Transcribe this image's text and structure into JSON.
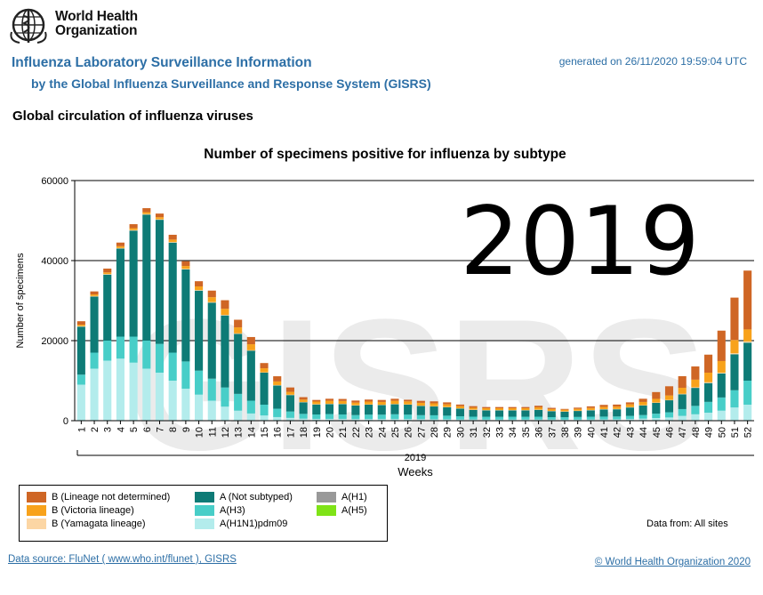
{
  "header": {
    "org_name_line1": "World Health",
    "org_name_line2": "Organization",
    "title": "Influenza Laboratory Surveillance Information",
    "subtitle": "by the Global Influenza Surveillance and Response System (GISRS)",
    "generated": "generated on 26/11/2020 19:59:04 UTC"
  },
  "section_title": "Global circulation of influenza viruses",
  "chart_data": {
    "type": "bar",
    "stacked": true,
    "title": "Number of specimens positive for influenza by subtype",
    "ylabel": "Number of specimens",
    "xlabel": "Weeks",
    "year_label": "2019",
    "big_year_overlay": "2019",
    "watermark": "GISRS",
    "ylim": [
      0,
      60000
    ],
    "yticks": [
      0,
      20000,
      40000,
      60000
    ],
    "grid": true,
    "categories": [
      "1",
      "2",
      "3",
      "4",
      "5",
      "6",
      "7",
      "8",
      "9",
      "10",
      "11",
      "12",
      "13",
      "14",
      "15",
      "16",
      "17",
      "18",
      "19",
      "20",
      "21",
      "22",
      "23",
      "24",
      "25",
      "26",
      "27",
      "28",
      "29",
      "30",
      "31",
      "32",
      "33",
      "34",
      "35",
      "36",
      "37",
      "38",
      "39",
      "40",
      "41",
      "42",
      "43",
      "44",
      "45",
      "46",
      "47",
      "48",
      "49",
      "50",
      "51",
      "52"
    ],
    "series": [
      {
        "name": "A(H1N1)pdm09",
        "color": "#b3ecec",
        "values": [
          9000,
          13000,
          15000,
          15500,
          14500,
          13000,
          12000,
          10000,
          8000,
          6500,
          5000,
          3500,
          2500,
          1800,
          1300,
          900,
          700,
          500,
          450,
          450,
          450,
          400,
          400,
          400,
          400,
          400,
          380,
          350,
          350,
          300,
          300,
          280,
          280,
          280,
          280,
          300,
          280,
          260,
          280,
          300,
          320,
          350,
          400,
          500,
          650,
          800,
          1200,
          1600,
          2000,
          2500,
          3300,
          4000
        ]
      },
      {
        "name": "A(H3)",
        "color": "#48cec8",
        "values": [
          2500,
          4000,
          5000,
          5500,
          6500,
          7000,
          7200,
          7000,
          6800,
          6000,
          5500,
          4800,
          4200,
          3200,
          2700,
          2100,
          1600,
          1200,
          1100,
          1200,
          1100,
          1000,
          1100,
          1100,
          1200,
          1100,
          1000,
          1000,
          900,
          800,
          700,
          700,
          700,
          700,
          700,
          700,
          600,
          600,
          650,
          700,
          700,
          700,
          800,
          900,
          1100,
          1300,
          1700,
          2100,
          2700,
          3300,
          4300,
          6000
        ]
      },
      {
        "name": "A(Not subtyped)",
        "color": "#0e7b76",
        "values": [
          12000,
          14000,
          16500,
          22000,
          26500,
          31500,
          31000,
          27500,
          23000,
          20000,
          19000,
          18000,
          15000,
          12500,
          8000,
          5800,
          4100,
          2900,
          2500,
          2500,
          2600,
          2400,
          2500,
          2400,
          2500,
          2500,
          2300,
          2200,
          2100,
          1900,
          1700,
          1600,
          1600,
          1600,
          1600,
          1700,
          1500,
          1400,
          1500,
          1600,
          1800,
          1800,
          2100,
          2400,
          2700,
          3000,
          3700,
          4500,
          4700,
          6000,
          9000,
          9500
        ]
      },
      {
        "name": "A(H1)",
        "color": "#999999",
        "values": [
          0,
          0,
          0,
          0,
          0,
          0,
          0,
          0,
          0,
          0,
          0,
          0,
          0,
          0,
          0,
          0,
          0,
          0,
          0,
          0,
          0,
          0,
          0,
          0,
          0,
          0,
          0,
          0,
          0,
          0,
          0,
          0,
          0,
          0,
          0,
          0,
          0,
          0,
          0,
          0,
          0,
          0,
          0,
          0,
          0,
          0,
          0,
          0,
          0,
          0,
          0,
          0
        ]
      },
      {
        "name": "A(H5)",
        "color": "#7fe317",
        "values": [
          0,
          0,
          0,
          0,
          0,
          0,
          0,
          0,
          0,
          0,
          0,
          0,
          0,
          0,
          0,
          0,
          0,
          0,
          0,
          0,
          0,
          0,
          0,
          0,
          0,
          0,
          0,
          0,
          0,
          0,
          0,
          0,
          0,
          0,
          0,
          0,
          0,
          0,
          0,
          0,
          0,
          0,
          0,
          0,
          0,
          0,
          0,
          0,
          0,
          0,
          0,
          0
        ]
      },
      {
        "name": "B (Yamagata lineage)",
        "color": "#fcd6a4",
        "values": [
          150,
          150,
          150,
          150,
          150,
          150,
          150,
          150,
          150,
          150,
          150,
          150,
          120,
          100,
          100,
          100,
          100,
          80,
          80,
          80,
          80,
          80,
          80,
          80,
          80,
          80,
          80,
          80,
          80,
          80,
          80,
          80,
          80,
          80,
          80,
          80,
          80,
          80,
          80,
          80,
          80,
          80,
          80,
          80,
          100,
          100,
          120,
          150,
          200,
          200,
          250,
          300
        ]
      },
      {
        "name": "B (Victoria lineage)",
        "color": "#f8a21b",
        "values": [
          350,
          400,
          400,
          450,
          450,
          450,
          500,
          600,
          700,
          900,
          1200,
          1500,
          1500,
          1500,
          1000,
          900,
          700,
          600,
          650,
          750,
          700,
          650,
          700,
          700,
          800,
          750,
          700,
          700,
          650,
          550,
          450,
          450,
          450,
          450,
          450,
          550,
          450,
          400,
          450,
          500,
          550,
          600,
          700,
          800,
          900,
          1100,
          1500,
          1900,
          2400,
          2900,
          3300,
          3000
        ]
      },
      {
        "name": "B (Lineage not determined)",
        "color": "#cf6625",
        "values": [
          850,
          750,
          950,
          900,
          1000,
          1000,
          900,
          1200,
          1200,
          1300,
          1650,
          2150,
          1900,
          1800,
          1300,
          1300,
          1100,
          600,
          400,
          500,
          500,
          500,
          500,
          500,
          500,
          400,
          500,
          500,
          500,
          400,
          400,
          300,
          300,
          300,
          300,
          400,
          300,
          200,
          300,
          400,
          500,
          500,
          500,
          800,
          1700,
          2300,
          2900,
          3300,
          4500,
          7600,
          10600,
          14700
        ]
      }
    ]
  },
  "legend": {
    "col1": [
      {
        "label": "B (Lineage not determined)",
        "color": "#cf6625"
      },
      {
        "label": "B (Victoria lineage)",
        "color": "#f8a21b"
      },
      {
        "label": "B (Yamagata lineage)",
        "color": "#fcd6a4"
      }
    ],
    "col2": [
      {
        "label": "A (Not subtyped)",
        "color": "#0e7b76"
      },
      {
        "label": "A(H3)",
        "color": "#48cec8"
      },
      {
        "label": "A(H1N1)pdm09",
        "color": "#b3ecec"
      }
    ],
    "col3": [
      {
        "label": "A(H1)",
        "color": "#999999"
      },
      {
        "label": "A(H5)",
        "color": "#7fe317"
      }
    ]
  },
  "data_from": "Data from: All sites",
  "footer": {
    "source_link": "Data source: FluNet ( www.who.int/flunet ),  GISRS",
    "copyright_link": "© World Health Organization 2020"
  }
}
